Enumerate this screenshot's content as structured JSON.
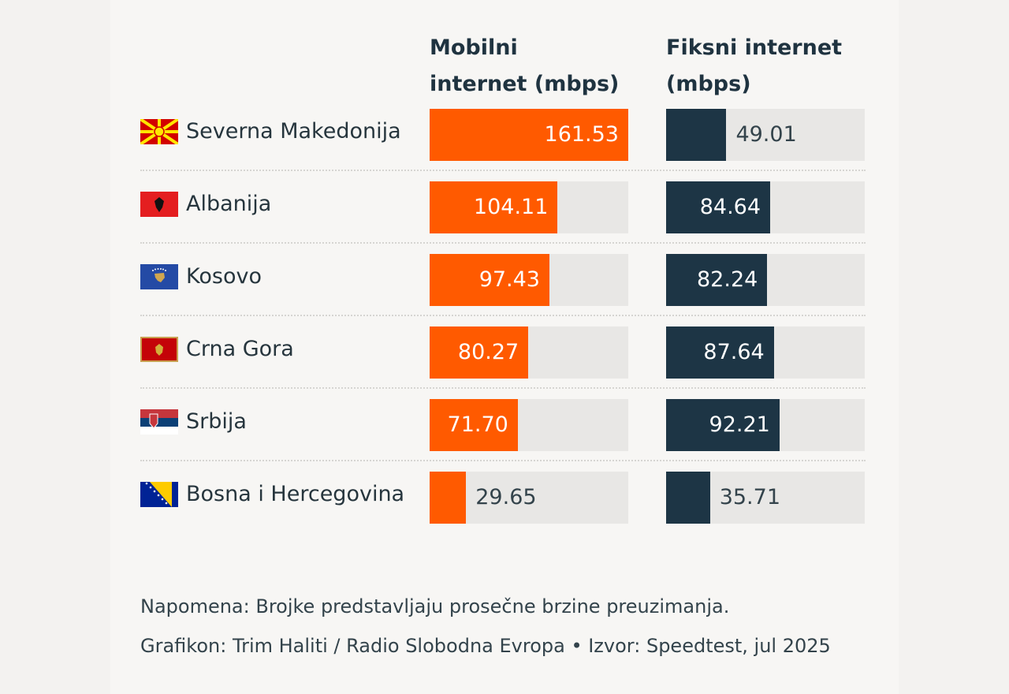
{
  "chart_data": {
    "type": "bar",
    "orientation": "horizontal",
    "categories": [
      "Severna Makedonija",
      "Albanija",
      "Kosovo",
      "Crna Gora",
      "Srbija",
      "Bosna i Hercegovina"
    ],
    "flags": [
      "flag-north-macedonia",
      "flag-albania",
      "flag-kosovo",
      "flag-montenegro",
      "flag-serbia",
      "flag-bosnia"
    ],
    "series": [
      {
        "name": "Mobilni internet (mbps)",
        "values": [
          161.53,
          104.11,
          97.43,
          80.27,
          71.7,
          29.65
        ],
        "labels": [
          "161.53",
          "104.11",
          "97.43",
          "80.27",
          "71.70",
          "29.65"
        ],
        "color": "#ff5a00"
      },
      {
        "name": "Fiksni internet (mbps)",
        "values": [
          49.01,
          84.64,
          82.24,
          87.64,
          92.21,
          35.71
        ],
        "labels": [
          "49.01",
          "84.64",
          "82.24",
          "87.64",
          "92.21",
          "35.71"
        ],
        "color": "#1d3545"
      }
    ],
    "xlim": [
      0,
      161.53
    ],
    "track_color": "#e8e7e5",
    "grid": false
  },
  "headers": {
    "mobile_line1": "Mobilni",
    "mobile_line2": "internet (mbps)",
    "fixed_line1": "Fiksni internet",
    "fixed_line2": "(mbps)"
  },
  "notes": {
    "note": "Napomena: Brojke predstavljaju prosečne brzine preuzimanja.",
    "credit": "Grafikon: Trim Haliti / Radio Slobodna Evropa • Izvor: Speedtest, jul 2025"
  }
}
